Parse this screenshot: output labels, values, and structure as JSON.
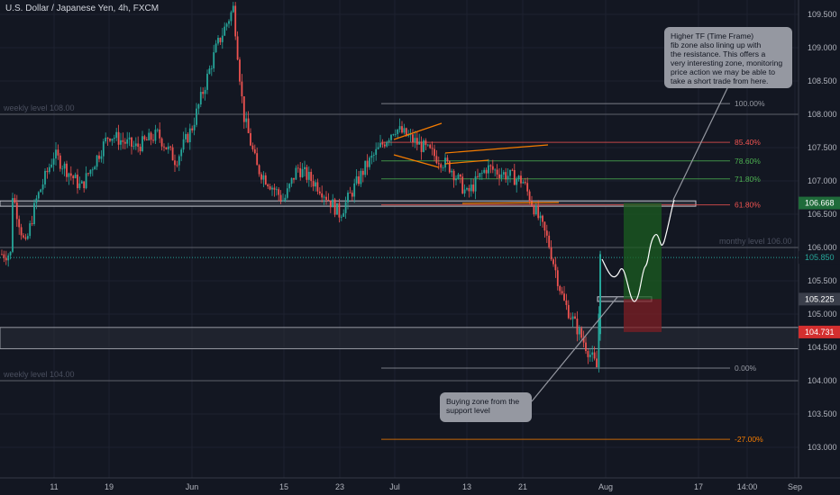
{
  "header": {
    "symbol_title": "U.S. Dollar / Japanese Yen, 4h, FXCM"
  },
  "colors": {
    "background": "#131722",
    "up": "#26a69a",
    "down": "#ef5350",
    "grid": "#1e2230",
    "axis_text": "#b2b5be",
    "level_text": "#4a4f5e",
    "tag_green": "#1f6b3a",
    "tag_red": "#d32f2f",
    "tag_gray": "#3a3e4a",
    "callout": "#9598a1"
  },
  "chart_data": {
    "type": "candlestick",
    "title": "U.S. Dollar / Japanese Yen, 4h, FXCM",
    "y_ticks": [
      "109.500",
      "109.000",
      "108.500",
      "108.000",
      "107.500",
      "107.000",
      "106.500",
      "106.000",
      "105.500",
      "105.000",
      "104.500",
      "104.000",
      "103.500",
      "103.000"
    ],
    "x_ticks": [
      "11",
      "19",
      "Jun",
      "15",
      "23",
      "Jul",
      "13",
      "21",
      "Aug",
      "17",
      "14:00",
      "Sep"
    ],
    "ylim": [
      102.8,
      109.7
    ],
    "series": [
      {
        "x": "May 3",
        "price": 106.8
      },
      {
        "x": "May 6",
        "price": 106.0
      },
      {
        "x": "May 8",
        "price": 106.7
      },
      {
        "x": "May 11",
        "price": 107.4
      },
      {
        "x": "May 14",
        "price": 106.9
      },
      {
        "x": "May 19",
        "price": 107.7
      },
      {
        "x": "May 22",
        "price": 107.5
      },
      {
        "x": "May 25",
        "price": 107.7
      },
      {
        "x": "May 28",
        "price": 107.3
      },
      {
        "x": "Jun 1",
        "price": 107.8
      },
      {
        "x": "Jun 4",
        "price": 109.0
      },
      {
        "x": "Jun 5",
        "price": 109.6
      },
      {
        "x": "Jun 8",
        "price": 108.0
      },
      {
        "x": "Jun 11",
        "price": 107.2
      },
      {
        "x": "Jun 15",
        "price": 106.7
      },
      {
        "x": "Jun 19",
        "price": 107.2
      },
      {
        "x": "Jun 22",
        "price": 106.9
      },
      {
        "x": "Jun 25",
        "price": 106.5
      },
      {
        "x": "Jun 29",
        "price": 107.2
      },
      {
        "x": "Jul 1",
        "price": 107.8
      },
      {
        "x": "Jul 6",
        "price": 107.5
      },
      {
        "x": "Jul 10",
        "price": 107.2
      },
      {
        "x": "Jul 13",
        "price": 106.8
      },
      {
        "x": "Jul 17",
        "price": 107.2
      },
      {
        "x": "Jul 21",
        "price": 107.0
      },
      {
        "x": "Jul 24",
        "price": 106.1
      },
      {
        "x": "Jul 27",
        "price": 105.2
      },
      {
        "x": "Jul 31",
        "price": 104.2
      },
      {
        "x": "Jul 31b",
        "price": 105.9
      }
    ],
    "horizontal_levels": [
      {
        "label": "weekly level 108.00",
        "price": 108.0
      },
      {
        "label": "monthy level 106.00",
        "price": 106.0
      },
      {
        "label": "weekly level 104.00",
        "price": 104.0
      }
    ],
    "fib_levels": [
      {
        "label": "100.00%",
        "price": 108.16,
        "color": "#9598a1"
      },
      {
        "label": "85.40%",
        "price": 107.58,
        "color": "#ef5350"
      },
      {
        "label": "78.60%",
        "price": 107.3,
        "color": "#4caf50"
      },
      {
        "label": "71.80%",
        "price": 107.03,
        "color": "#4caf50"
      },
      {
        "label": "61.80%",
        "price": 106.64,
        "color": "#ef5350"
      },
      {
        "label": "0.00%",
        "price": 104.19,
        "color": "#9598a1"
      },
      {
        "label": "-27.00%",
        "price": 103.12,
        "color": "#f57c00"
      }
    ],
    "price_tags": [
      {
        "label": "106.668",
        "price": 106.668,
        "kind": "green"
      },
      {
        "label": "105.850",
        "price": 105.85,
        "kind": "teal"
      },
      {
        "label": "105.225",
        "price": 105.225,
        "kind": "gray"
      },
      {
        "label": "104.731",
        "price": 104.731,
        "kind": "red"
      }
    ],
    "trade": {
      "entry": 105.225,
      "target": 106.668,
      "stop": 104.731
    },
    "annotations": [
      {
        "name": "callout-higher-tf",
        "lines": [
          "Higher TF (Time Frame)",
          "fib zone also lining up with",
          "the resistance. This offers a",
          "very interesting zone, monitoring",
          "price action we may be able to",
          "take a short trade from here."
        ]
      },
      {
        "name": "callout-buying-zone",
        "lines": [
          "Buying zone from the",
          "support level"
        ]
      }
    ]
  }
}
